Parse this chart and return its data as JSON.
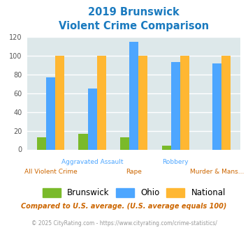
{
  "title_line1": "2019 Brunswick",
  "title_line2": "Violent Crime Comparison",
  "categories": [
    "All Violent Crime",
    "Aggravated Assault",
    "Rape",
    "Robbery",
    "Murder & Mans..."
  ],
  "brunswick": [
    13,
    17,
    13,
    4,
    0
  ],
  "ohio": [
    77,
    65,
    115,
    93,
    92
  ],
  "national": [
    100,
    100,
    100,
    100,
    100
  ],
  "brunswick_color": "#7aba2a",
  "ohio_color": "#4da6ff",
  "national_color": "#ffb732",
  "ylim": [
    0,
    120
  ],
  "yticks": [
    0,
    20,
    40,
    60,
    80,
    100,
    120
  ],
  "bg_color": "#dde8ea",
  "footnote1": "Compared to U.S. average. (U.S. average equals 100)",
  "footnote2": "© 2025 CityRating.com - https://www.cityrating.com/crime-statistics/",
  "title_color": "#1a7abf",
  "footnote1_color": "#cc6600",
  "footnote2_color": "#999999",
  "label_top_color": "#4da6ff",
  "label_bot_color": "#cc6600",
  "bar_width": 0.22
}
